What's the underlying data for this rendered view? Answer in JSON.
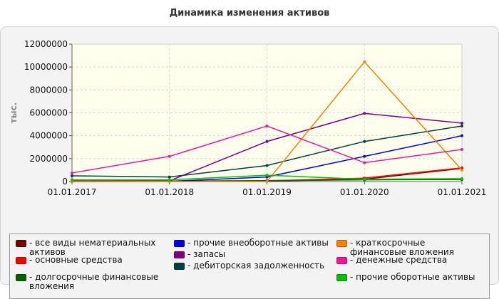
{
  "title": "Динамика изменения активов",
  "chart_data": {
    "type": "line",
    "title": "Динамика изменения активов",
    "ylabel": "тыс.",
    "xlabel": "",
    "x": [
      "01.01.2017",
      "01.01.2018",
      "01.01.2019",
      "01.01.2020",
      "01.01.2021"
    ],
    "ylim": [
      0,
      12000000
    ],
    "yticks": [
      "0",
      "2000000",
      "4000000",
      "6000000",
      "8000000",
      "10000000",
      "12000000"
    ],
    "grid": true,
    "legend_position": "bottom",
    "series": [
      {
        "name": "все виды нематериальных активов",
        "color": "#7a0000",
        "values": [
          10000,
          20000,
          50000,
          200000,
          1150000
        ]
      },
      {
        "name": "основные средства",
        "color": "#ff0000",
        "values": [
          10000,
          20000,
          60000,
          300000,
          1200000
        ]
      },
      {
        "name": "долгосрочные финансовые вложения",
        "color": "#006400",
        "values": [
          50000,
          40000,
          80000,
          150000,
          180000
        ]
      },
      {
        "name": "прочие внеоборотные активы",
        "color": "#0000ee",
        "values": [
          0,
          20000,
          400000,
          2200000,
          4000000
        ]
      },
      {
        "name": "запасы",
        "color": "#800080",
        "values": [
          50000,
          60000,
          3500000,
          5950000,
          5100000
        ]
      },
      {
        "name": "дебиторская задолженность",
        "color": "#004040",
        "values": [
          500000,
          400000,
          1400000,
          3500000,
          4850000
        ]
      },
      {
        "name": "краткосрочные финансовые вложения",
        "color": "#ff8000",
        "values": [
          0,
          0,
          0,
          10450000,
          1000000
        ]
      },
      {
        "name": "денежные средства",
        "color": "#ff1493",
        "values": [
          750000,
          2200000,
          4850000,
          1650000,
          2800000
        ]
      },
      {
        "name": "прочие оборотные активы",
        "color": "#00c000",
        "values": [
          150000,
          150000,
          550000,
          200000,
          250000
        ]
      }
    ]
  }
}
